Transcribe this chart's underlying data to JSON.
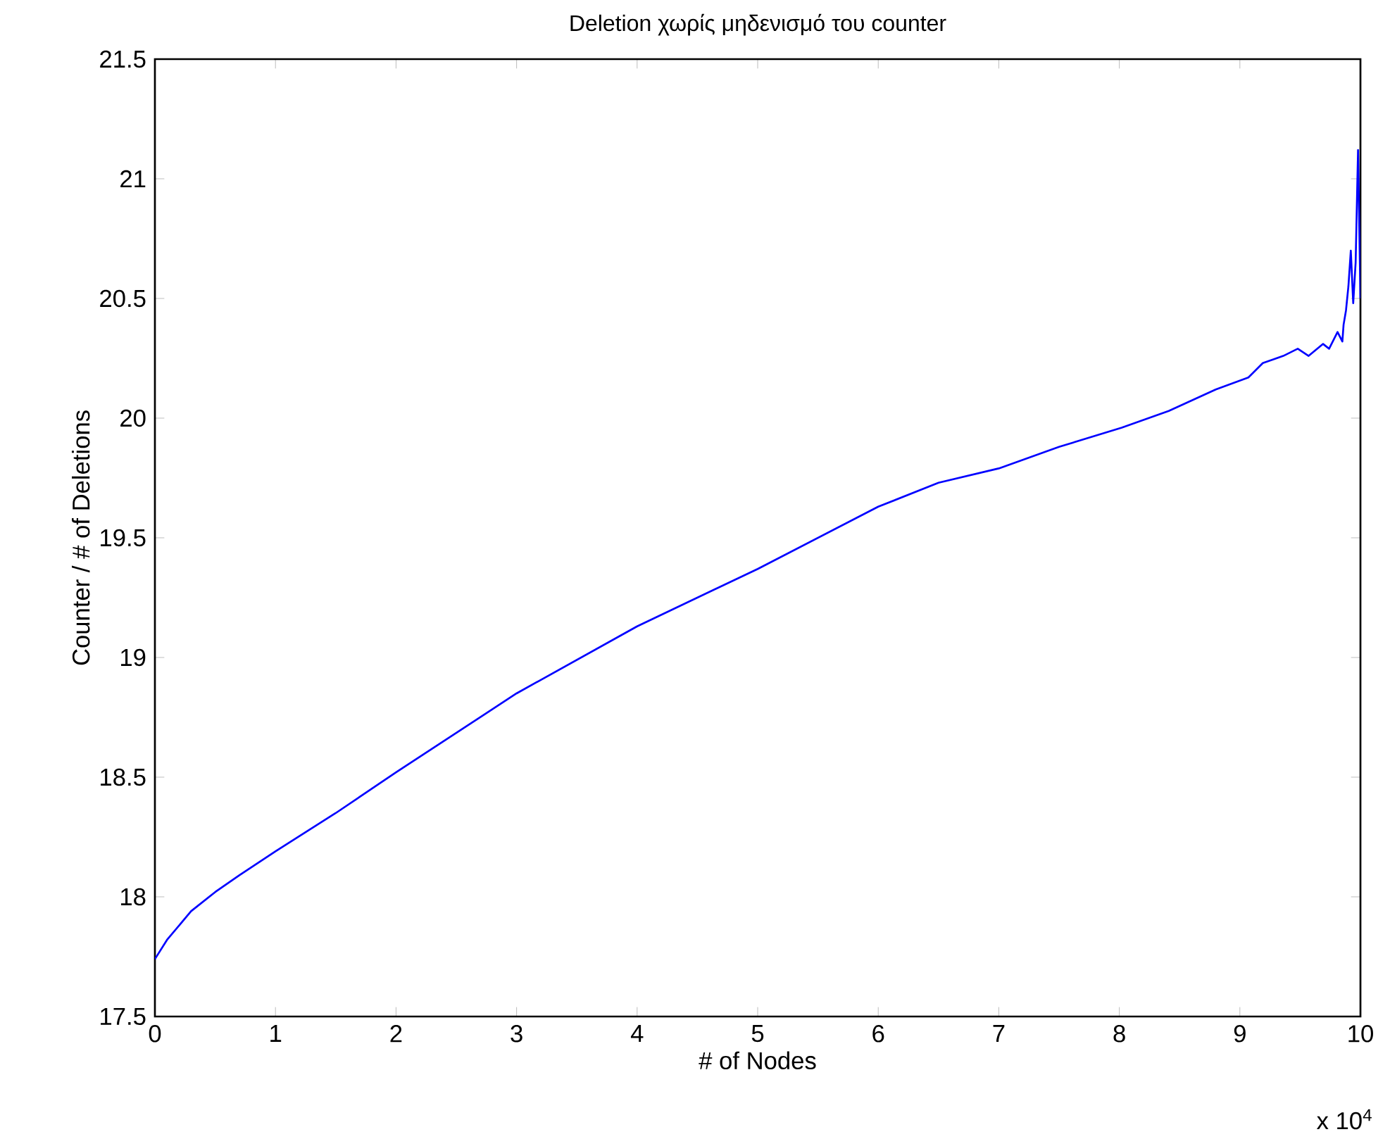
{
  "chart_data": {
    "type": "line",
    "title": "Deletion χωρίς μηδενισμό του counter",
    "xlabel": "# of Nodes",
    "ylabel": "Counter / # of Deletions",
    "annotations": [
      "x 10$^{4}$"
    ],
    "x": [
      0,
      0.1,
      0.3,
      0.5,
      0.7,
      1,
      1.5,
      2,
      3,
      4,
      5,
      6,
      6.5,
      7,
      7.5,
      8.02,
      8.41,
      8.8,
      9.07,
      9.19,
      9.36,
      9.48,
      9.57,
      9.69,
      9.74,
      9.81,
      9.85,
      9.86,
      9.88,
      9.9,
      9.92,
      9.94,
      9.96,
      9.98,
      10
    ],
    "series": [
      {
        "color": "#0000ff",
        "values": [
          17.74,
          17.82,
          17.94,
          18.02,
          18.09,
          18.19,
          18.35,
          18.52,
          18.85,
          19.13,
          19.37,
          19.63,
          19.73,
          19.79,
          19.88,
          19.96,
          20.03,
          20.12,
          20.17,
          20.23,
          20.26,
          20.29,
          20.26,
          20.31,
          20.29,
          20.36,
          20.32,
          20.39,
          20.45,
          20.55,
          20.7,
          20.48,
          20.65,
          21.12,
          20.5
        ]
      }
    ],
    "xlim": [
      0,
      10
    ],
    "ylim": [
      17.5,
      21.5
    ],
    "xticks": [
      0,
      1,
      2,
      3,
      4,
      5,
      6,
      7,
      8,
      9,
      10
    ],
    "yticks": [
      17.5,
      18,
      18.5,
      19,
      19.5,
      20,
      20.5,
      21,
      21.5
    ],
    "grid": false,
    "marker": "none",
    "line_style": "solid"
  }
}
